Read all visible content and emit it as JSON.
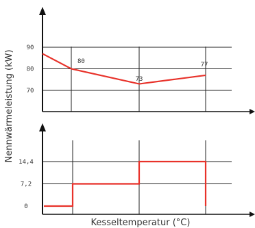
{
  "chart_data": [
    {
      "type": "line",
      "title": "",
      "ylabel": "Nennwärmeleistung (kW)",
      "xlabel": "",
      "yticks": [
        "70",
        "80",
        "90"
      ],
      "ylim": [
        62,
        95
      ],
      "grid": true,
      "series": [
        {
          "values": [
            87,
            80,
            73,
            77
          ]
        }
      ],
      "data_labels": [
        "80",
        "73",
        "77"
      ],
      "color": "#e8322a"
    },
    {
      "type": "line",
      "step": true,
      "title": "",
      "xlabel": "Kesseltemperatur (°C)",
      "ylabel": "",
      "yticks": [
        "0",
        "7,2",
        "14,4"
      ],
      "yvalues": [
        0,
        7.2,
        14.4
      ],
      "ylim": [
        -1.5,
        20
      ],
      "grid": true,
      "series": [
        {
          "values": [
            0,
            0,
            7.2,
            7.2,
            14.4,
            14.4,
            0
          ]
        }
      ],
      "color": "#e8322a"
    }
  ]
}
